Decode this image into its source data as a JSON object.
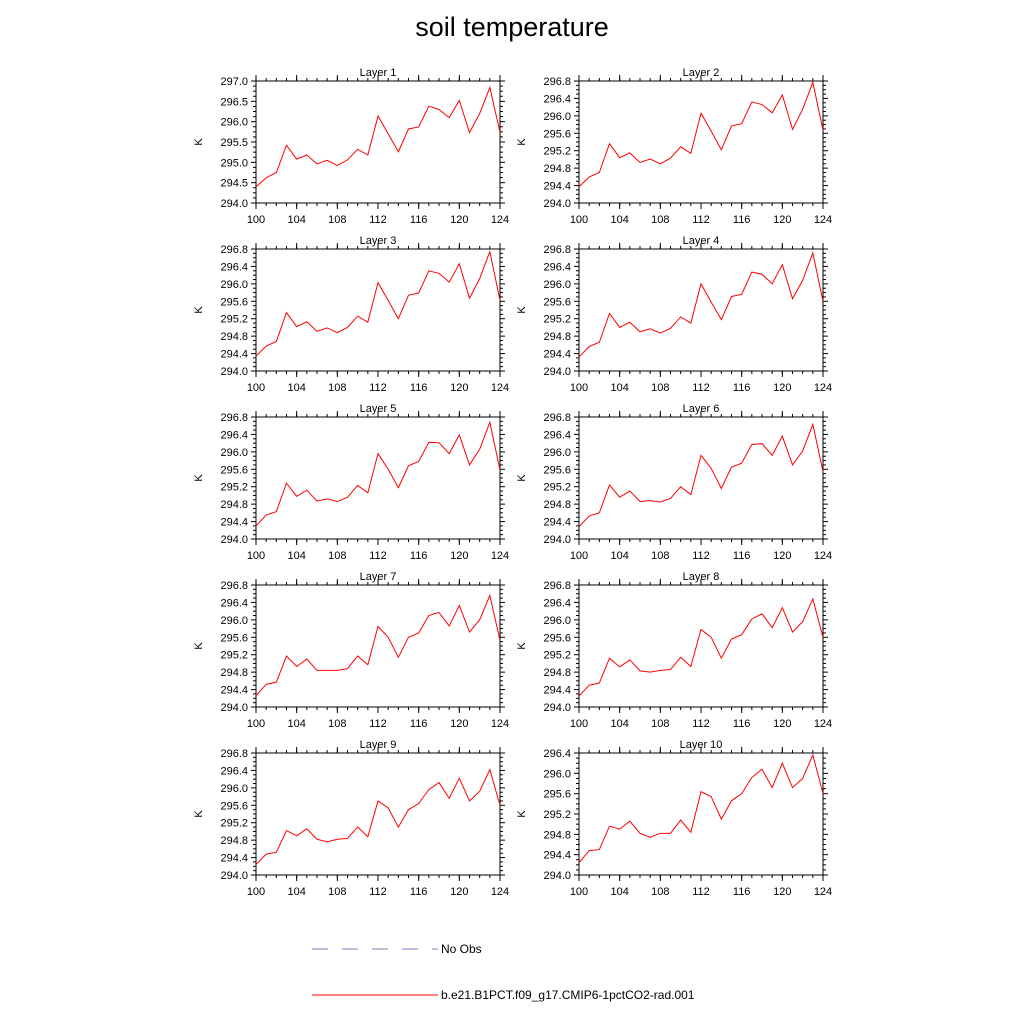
{
  "figure": {
    "title": "soil temperature",
    "colors": {
      "model_line": "#ff0000",
      "obs_line": "#7777bb",
      "axis": "#000000"
    }
  },
  "legend": {
    "placement": "bottom-center",
    "entries": [
      {
        "label": "No Obs",
        "style": "dashed",
        "color": "#7777bb"
      },
      {
        "label": "b.e21.B1PCT.f09_g17.CMIP6-1pctCO2-rad.001",
        "style": "solid",
        "color": "#ff0000"
      }
    ]
  },
  "chart_data": [
    {
      "type": "line",
      "title": "Layer 1",
      "ylabel": "K",
      "xlim": [
        100,
        124
      ],
      "xticks": [
        100,
        104,
        108,
        112,
        116,
        120,
        124
      ],
      "ylim": [
        294.0,
        297.0
      ],
      "yticks": [
        294.0,
        294.5,
        295.0,
        295.5,
        296.0,
        296.5,
        297.0
      ],
      "ytick_labels": [
        "294.0",
        "294.5",
        "295.0",
        "295.5",
        "296.0",
        "296.5",
        "297.0"
      ],
      "x": [
        100,
        101,
        102,
        103,
        104,
        105,
        106,
        107,
        108,
        109,
        110,
        111,
        112,
        113,
        114,
        115,
        116,
        117,
        118,
        119,
        120,
        121,
        122,
        123,
        124
      ],
      "series": [
        {
          "name": "b.e21.B1PCT.f09_g17.CMIP6-1pctCO2-rad.001",
          "values": [
            294.4,
            294.62,
            294.75,
            295.42,
            295.08,
            295.18,
            294.96,
            295.05,
            294.92,
            295.06,
            295.32,
            295.18,
            296.14,
            295.7,
            295.26,
            295.82,
            295.87,
            296.38,
            296.3,
            296.1,
            296.52,
            295.73,
            296.2,
            296.84,
            295.74
          ]
        }
      ]
    },
    {
      "type": "line",
      "title": "Layer 2",
      "ylabel": "K",
      "xlim": [
        100,
        124
      ],
      "xticks": [
        100,
        104,
        108,
        112,
        116,
        120,
        124
      ],
      "ylim": [
        294.0,
        296.8
      ],
      "yticks": [
        294.0,
        294.4,
        294.8,
        295.2,
        295.6,
        296.0,
        296.4,
        296.8
      ],
      "ytick_labels": [
        "294.0",
        "294.4",
        "294.8",
        "295.2",
        "295.6",
        "296.0",
        "296.4",
        "296.8"
      ],
      "x": [
        100,
        101,
        102,
        103,
        104,
        105,
        106,
        107,
        108,
        109,
        110,
        111,
        112,
        113,
        114,
        115,
        116,
        117,
        118,
        119,
        120,
        121,
        122,
        123,
        124
      ],
      "series": [
        {
          "name": "b.e21.B1PCT.f09_g17.CMIP6-1pctCO2-rad.001",
          "values": [
            294.37,
            294.6,
            294.7,
            295.36,
            295.04,
            295.15,
            294.93,
            295.01,
            294.9,
            295.03,
            295.29,
            295.14,
            296.06,
            295.65,
            295.22,
            295.77,
            295.82,
            296.32,
            296.26,
            296.07,
            296.48,
            295.69,
            296.15,
            296.77,
            295.67
          ]
        }
      ]
    },
    {
      "type": "line",
      "title": "Layer 3",
      "ylabel": "K",
      "xlim": [
        100,
        124
      ],
      "xticks": [
        100,
        104,
        108,
        112,
        116,
        120,
        124
      ],
      "ylim": [
        294.0,
        296.8
      ],
      "yticks": [
        294.0,
        294.4,
        294.8,
        295.2,
        295.6,
        296.0,
        296.4,
        296.8
      ],
      "ytick_labels": [
        "294.0",
        "294.4",
        "294.8",
        "295.2",
        "295.6",
        "296.0",
        "296.4",
        "296.8"
      ],
      "x": [
        100,
        101,
        102,
        103,
        104,
        105,
        106,
        107,
        108,
        109,
        110,
        111,
        112,
        113,
        114,
        115,
        116,
        117,
        118,
        119,
        120,
        121,
        122,
        123,
        124
      ],
      "series": [
        {
          "name": "b.e21.B1PCT.f09_g17.CMIP6-1pctCO2-rad.001",
          "values": [
            294.34,
            294.57,
            294.68,
            295.34,
            295.02,
            295.13,
            294.91,
            294.99,
            294.88,
            295.0,
            295.26,
            295.12,
            296.03,
            295.62,
            295.2,
            295.74,
            295.79,
            296.3,
            296.24,
            296.04,
            296.46,
            295.67,
            296.12,
            296.74,
            295.62
          ]
        }
      ]
    },
    {
      "type": "line",
      "title": "Layer 4",
      "ylabel": "K",
      "xlim": [
        100,
        124
      ],
      "xticks": [
        100,
        104,
        108,
        112,
        116,
        120,
        124
      ],
      "ylim": [
        294.0,
        296.8
      ],
      "yticks": [
        294.0,
        294.4,
        294.8,
        295.2,
        295.6,
        296.0,
        296.4,
        296.8
      ],
      "ytick_labels": [
        "294.0",
        "294.4",
        "294.8",
        "295.2",
        "295.6",
        "296.0",
        "296.4",
        "296.8"
      ],
      "x": [
        100,
        101,
        102,
        103,
        104,
        105,
        106,
        107,
        108,
        109,
        110,
        111,
        112,
        113,
        114,
        115,
        116,
        117,
        118,
        119,
        120,
        121,
        122,
        123,
        124
      ],
      "series": [
        {
          "name": "b.e21.B1PCT.f09_g17.CMIP6-1pctCO2-rad.001",
          "values": [
            294.32,
            294.56,
            294.66,
            295.32,
            295.0,
            295.12,
            294.9,
            294.97,
            294.87,
            294.98,
            295.24,
            295.1,
            296.0,
            295.58,
            295.18,
            295.71,
            295.76,
            296.27,
            296.22,
            296.0,
            296.44,
            295.66,
            296.08,
            296.71,
            295.6
          ]
        }
      ]
    },
    {
      "type": "line",
      "title": "Layer 5",
      "ylabel": "K",
      "xlim": [
        100,
        124
      ],
      "xticks": [
        100,
        104,
        108,
        112,
        116,
        120,
        124
      ],
      "ylim": [
        294.0,
        296.8
      ],
      "yticks": [
        294.0,
        294.4,
        294.8,
        295.2,
        295.6,
        296.0,
        296.4,
        296.8
      ],
      "ytick_labels": [
        "294.0",
        "294.4",
        "294.8",
        "295.2",
        "295.6",
        "296.0",
        "296.4",
        "296.8"
      ],
      "x": [
        100,
        101,
        102,
        103,
        104,
        105,
        106,
        107,
        108,
        109,
        110,
        111,
        112,
        113,
        114,
        115,
        116,
        117,
        118,
        119,
        120,
        121,
        122,
        123,
        124
      ],
      "series": [
        {
          "name": "b.e21.B1PCT.f09_g17.CMIP6-1pctCO2-rad.001",
          "values": [
            294.3,
            294.55,
            294.63,
            295.28,
            294.98,
            295.12,
            294.87,
            294.92,
            294.86,
            294.96,
            295.23,
            295.06,
            295.96,
            295.6,
            295.18,
            295.68,
            295.78,
            296.22,
            296.21,
            295.96,
            296.39,
            295.7,
            296.06,
            296.68,
            295.58
          ]
        }
      ]
    },
    {
      "type": "line",
      "title": "Layer 6",
      "ylabel": "K",
      "xlim": [
        100,
        124
      ],
      "xticks": [
        100,
        104,
        108,
        112,
        116,
        120,
        124
      ],
      "ylim": [
        294.0,
        296.8
      ],
      "yticks": [
        294.0,
        294.4,
        294.8,
        295.2,
        295.6,
        296.0,
        296.4,
        296.8
      ],
      "ytick_labels": [
        "294.0",
        "294.4",
        "294.8",
        "295.2",
        "295.6",
        "296.0",
        "296.4",
        "296.8"
      ],
      "x": [
        100,
        101,
        102,
        103,
        104,
        105,
        106,
        107,
        108,
        109,
        110,
        111,
        112,
        113,
        114,
        115,
        116,
        117,
        118,
        119,
        120,
        121,
        122,
        123,
        124
      ],
      "series": [
        {
          "name": "b.e21.B1PCT.f09_g17.CMIP6-1pctCO2-rad.001",
          "values": [
            294.28,
            294.53,
            294.6,
            295.24,
            294.96,
            295.1,
            294.86,
            294.88,
            294.85,
            294.93,
            295.2,
            295.02,
            295.92,
            295.62,
            295.16,
            295.65,
            295.74,
            296.17,
            296.19,
            295.92,
            296.36,
            295.7,
            296.02,
            296.63,
            295.55
          ]
        }
      ]
    },
    {
      "type": "line",
      "title": "Layer 7",
      "ylabel": "K",
      "xlim": [
        100,
        124
      ],
      "xticks": [
        100,
        104,
        108,
        112,
        116,
        120,
        124
      ],
      "ylim": [
        294.0,
        296.8
      ],
      "yticks": [
        294.0,
        294.4,
        294.8,
        295.2,
        295.6,
        296.0,
        296.4,
        296.8
      ],
      "ytick_labels": [
        "294.0",
        "294.4",
        "294.8",
        "295.2",
        "295.6",
        "296.0",
        "296.4",
        "296.8"
      ],
      "x": [
        100,
        101,
        102,
        103,
        104,
        105,
        106,
        107,
        108,
        109,
        110,
        111,
        112,
        113,
        114,
        115,
        116,
        117,
        118,
        119,
        120,
        121,
        122,
        123,
        124
      ],
      "series": [
        {
          "name": "b.e21.B1PCT.f09_g17.CMIP6-1pctCO2-rad.001",
          "values": [
            294.26,
            294.52,
            294.57,
            295.17,
            294.93,
            295.1,
            294.84,
            294.84,
            294.84,
            294.88,
            295.17,
            294.97,
            295.85,
            295.6,
            295.14,
            295.6,
            295.7,
            296.1,
            296.17,
            295.86,
            296.33,
            295.72,
            296.0,
            296.56,
            295.53
          ]
        }
      ]
    },
    {
      "type": "line",
      "title": "Layer 8",
      "ylabel": "K",
      "xlim": [
        100,
        124
      ],
      "xticks": [
        100,
        104,
        108,
        112,
        116,
        120,
        124
      ],
      "ylim": [
        294.0,
        296.8
      ],
      "yticks": [
        294.0,
        294.4,
        294.8,
        295.2,
        295.6,
        296.0,
        296.4,
        296.8
      ],
      "ytick_labels": [
        "294.0",
        "294.4",
        "294.8",
        "295.2",
        "295.6",
        "296.0",
        "296.4",
        "296.8"
      ],
      "x": [
        100,
        101,
        102,
        103,
        104,
        105,
        106,
        107,
        108,
        109,
        110,
        111,
        112,
        113,
        114,
        115,
        116,
        117,
        118,
        119,
        120,
        121,
        122,
        123,
        124
      ],
      "series": [
        {
          "name": "b.e21.B1PCT.f09_g17.CMIP6-1pctCO2-rad.001",
          "values": [
            294.25,
            294.5,
            294.55,
            295.12,
            294.92,
            295.08,
            294.83,
            294.8,
            294.84,
            294.86,
            295.14,
            294.93,
            295.78,
            295.6,
            295.12,
            295.56,
            295.66,
            296.02,
            296.14,
            295.82,
            296.28,
            295.72,
            295.96,
            296.48,
            295.6
          ]
        }
      ]
    },
    {
      "type": "line",
      "title": "Layer 9",
      "ylabel": "K",
      "xlim": [
        100,
        124
      ],
      "xticks": [
        100,
        104,
        108,
        112,
        116,
        120,
        124
      ],
      "ylim": [
        294.0,
        296.8
      ],
      "yticks": [
        294.0,
        294.4,
        294.8,
        295.2,
        295.6,
        296.0,
        296.4,
        296.8
      ],
      "ytick_labels": [
        "294.0",
        "294.4",
        "294.8",
        "295.2",
        "295.6",
        "296.0",
        "296.4",
        "296.8"
      ],
      "x": [
        100,
        101,
        102,
        103,
        104,
        105,
        106,
        107,
        108,
        109,
        110,
        111,
        112,
        113,
        114,
        115,
        116,
        117,
        118,
        119,
        120,
        121,
        122,
        123,
        124
      ],
      "series": [
        {
          "name": "b.e21.B1PCT.f09_g17.CMIP6-1pctCO2-rad.001",
          "values": [
            294.24,
            294.48,
            294.52,
            295.02,
            294.9,
            295.06,
            294.82,
            294.76,
            294.82,
            294.84,
            295.1,
            294.88,
            295.7,
            295.54,
            295.1,
            295.5,
            295.64,
            295.96,
            296.12,
            295.76,
            296.22,
            295.7,
            295.92,
            296.42,
            295.6
          ]
        }
      ]
    },
    {
      "type": "line",
      "title": "Layer 10",
      "ylabel": "K",
      "xlim": [
        100,
        124
      ],
      "xticks": [
        100,
        104,
        108,
        112,
        116,
        120,
        124
      ],
      "ylim": [
        294.0,
        296.4
      ],
      "yticks": [
        294.0,
        294.4,
        294.8,
        295.2,
        295.6,
        296.0,
        296.4
      ],
      "ytick_labels": [
        "294.0",
        "294.4",
        "294.8",
        "295.2",
        "295.6",
        "296.0",
        "296.4"
      ],
      "x": [
        100,
        101,
        102,
        103,
        104,
        105,
        106,
        107,
        108,
        109,
        110,
        111,
        112,
        113,
        114,
        115,
        116,
        117,
        118,
        119,
        120,
        121,
        122,
        123,
        124
      ],
      "series": [
        {
          "name": "b.e21.B1PCT.f09_g17.CMIP6-1pctCO2-rad.001",
          "values": [
            294.24,
            294.48,
            294.5,
            294.96,
            294.9,
            295.06,
            294.82,
            294.74,
            294.82,
            294.82,
            295.08,
            294.84,
            295.64,
            295.54,
            295.1,
            295.46,
            295.6,
            295.92,
            296.08,
            295.72,
            296.2,
            295.72,
            295.9,
            296.36,
            295.6
          ]
        }
      ]
    }
  ]
}
